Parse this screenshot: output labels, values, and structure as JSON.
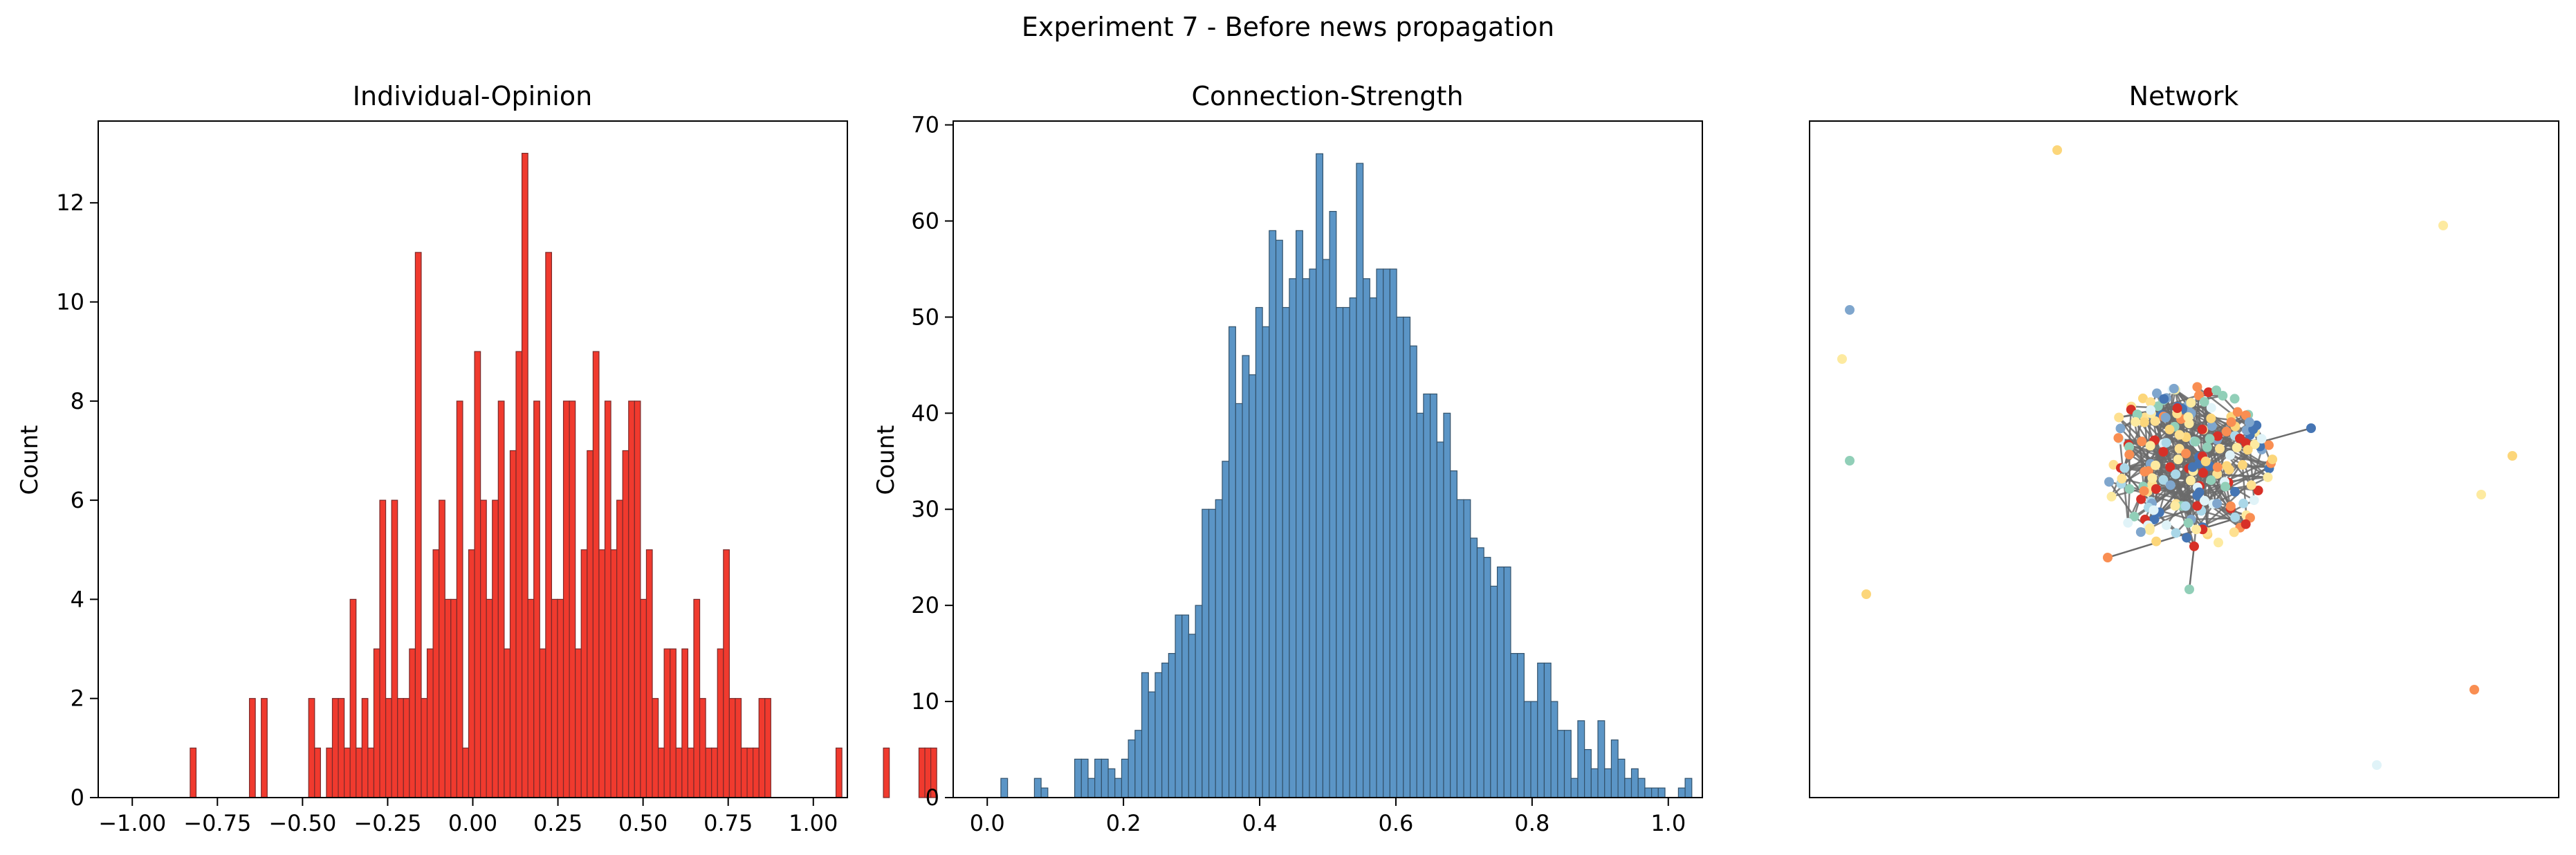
{
  "figure": {
    "suptitle": "Experiment 7 - Before news propagation"
  },
  "chart_data": [
    {
      "type": "bar",
      "title": "Individual-Opinion",
      "xlabel": "",
      "ylabel": "Count",
      "xlim": [
        -1.1,
        1.1
      ],
      "ylim": [
        0,
        13.65
      ],
      "xticks": [
        -1.0,
        -0.75,
        -0.5,
        -0.25,
        0.0,
        0.25,
        0.5,
        0.75,
        1.0
      ],
      "xtick_labels": [
        "−1.00",
        "−0.75",
        "−0.50",
        "−0.25",
        "0.00",
        "0.25",
        "0.50",
        "0.75",
        "1.00"
      ],
      "yticks": [
        0,
        2,
        4,
        6,
        8,
        10,
        12
      ],
      "ytick_labels": [
        "0",
        "2",
        "4",
        "6",
        "8",
        "10",
        "12"
      ],
      "bin_start": -0.83,
      "bin_width": 0.0174,
      "values": [
        1,
        0,
        0,
        0,
        0,
        0,
        0,
        0,
        0,
        0,
        2,
        0,
        2,
        0,
        0,
        0,
        0,
        0,
        0,
        0,
        2,
        1,
        0,
        1,
        2,
        2,
        1,
        4,
        1,
        2,
        1,
        3,
        6,
        2,
        6,
        2,
        2,
        3,
        11,
        2,
        3,
        5,
        6,
        4,
        4,
        8,
        1,
        5,
        9,
        6,
        4,
        6,
        8,
        3,
        7,
        9,
        13,
        4,
        8,
        3,
        11,
        4,
        4,
        8,
        8,
        3,
        5,
        7,
        9,
        5,
        8,
        5,
        6,
        7,
        8,
        8,
        4,
        5,
        2,
        1,
        3,
        3,
        1,
        3,
        1,
        4,
        2,
        1,
        1,
        3,
        5,
        2,
        2,
        1,
        1,
        1,
        2,
        2,
        0,
        0,
        0,
        0,
        0,
        0,
        0,
        0,
        0,
        0,
        0,
        1,
        0,
        0,
        0,
        0,
        0,
        0,
        0,
        1,
        0,
        0,
        0,
        0,
        0,
        1,
        1,
        1
      ],
      "bar_color": "#f03a2e",
      "edge_color": "#7a2a2a",
      "grid": false
    },
    {
      "type": "bar",
      "title": "Connection-Strength",
      "xlabel": "",
      "ylabel": "Count",
      "xlim": [
        -0.05,
        1.05
      ],
      "ylim": [
        0,
        70.4
      ],
      "xticks": [
        0.0,
        0.2,
        0.4,
        0.6,
        0.8,
        1.0
      ],
      "xtick_labels": [
        "0.0",
        "0.2",
        "0.4",
        "0.6",
        "0.8",
        "1.0"
      ],
      "yticks": [
        0,
        10,
        20,
        30,
        40,
        50,
        60,
        70
      ],
      "ytick_labels": [
        "0",
        "10",
        "20",
        "30",
        "40",
        "50",
        "60",
        "70"
      ],
      "bin_start": 0.02,
      "bin_width": 0.00985,
      "values": [
        2,
        0,
        0,
        0,
        0,
        2,
        1,
        0,
        0,
        0,
        0,
        4,
        4,
        2,
        4,
        4,
        3,
        2,
        4,
        6,
        7,
        13,
        11,
        13,
        14,
        15,
        19,
        19,
        17,
        20,
        30,
        30,
        31,
        35,
        49,
        41,
        46,
        44,
        51,
        49,
        59,
        58,
        51,
        54,
        59,
        54,
        55,
        67,
        56,
        61,
        51,
        51,
        52,
        66,
        54,
        52,
        55,
        55,
        55,
        50,
        50,
        47,
        40,
        42,
        42,
        37,
        40,
        34,
        31,
        31,
        27,
        26,
        25,
        22,
        24,
        24,
        15,
        15,
        10,
        10,
        14,
        14,
        10,
        7,
        7,
        2,
        8,
        5,
        3,
        8,
        3,
        6,
        4,
        2,
        3,
        2,
        1,
        1,
        1,
        0,
        0,
        1,
        2
      ],
      "bar_color": "#5b95c6",
      "edge_color": "#33526b",
      "grid": false
    },
    {
      "type": "network",
      "title": "Network",
      "axes_visible": false
    }
  ]
}
